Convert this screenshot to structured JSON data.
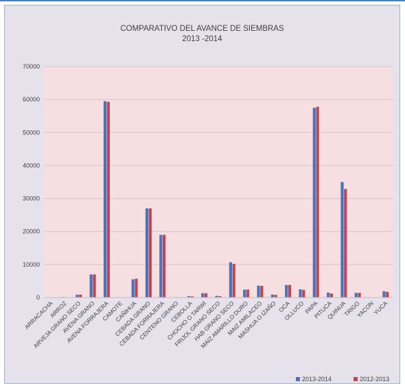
{
  "chart_data": {
    "type": "bar",
    "title": "COMPARATIVO DEL AVANCE DE SIEMBRAS",
    "subtitle": "2013 -2014",
    "xlabel": "",
    "ylabel": "",
    "ylim": [
      0,
      70000
    ],
    "yticks": [
      0,
      10000,
      20000,
      30000,
      40000,
      50000,
      60000,
      70000
    ],
    "grid": true,
    "legend_position": "bottom-right",
    "categories": [
      "ARRACACHA",
      "ARROZ",
      "ARVEJA GRANO SECO",
      "AVENA GRANO",
      "AVENA FORRAJERA",
      "CAMOTE",
      "CAÑIHUA",
      "CEBADA GRANO",
      "CEBADA FORRAJERA",
      "CENTENO GRANO",
      "CEBOLLA",
      "CHOCHO O TARWI",
      "FRIJOL GRANO SECO",
      "HAB GRANO SECO",
      "MAIZ AMARILLO DURO",
      "MAIZ AMILACEO",
      "MASHUA O IZAÑO",
      "OCA",
      "OLLUCO",
      "PAPA",
      "PITUCA",
      "QUINUA",
      "TRIGO",
      "YACON",
      "YUCA"
    ],
    "series": [
      {
        "name": "2013-2014",
        "color": "#4a72c4",
        "values": [
          50,
          150,
          850,
          7000,
          59500,
          50,
          5500,
          27000,
          19000,
          50,
          400,
          1300,
          500,
          10700,
          2400,
          3600,
          900,
          3800,
          2500,
          57500,
          1500,
          35000,
          1400,
          50,
          1900
        ]
      },
      {
        "name": "2012-2013",
        "color": "#c0464b",
        "values": [
          30,
          100,
          850,
          7000,
          59300,
          50,
          5700,
          27000,
          19000,
          50,
          350,
          1300,
          400,
          10200,
          2400,
          3500,
          800,
          3800,
          2300,
          57800,
          1200,
          32900,
          1400,
          50,
          1700
        ]
      }
    ]
  }
}
